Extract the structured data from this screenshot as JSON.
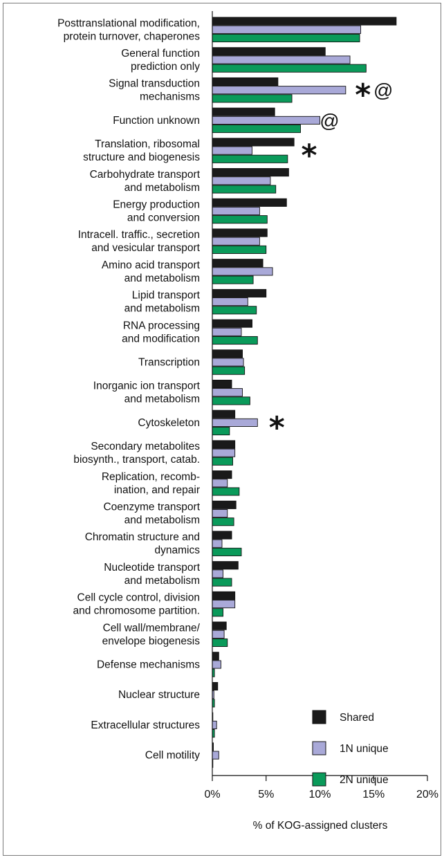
{
  "chart_data": {
    "type": "bar",
    "orientation": "horizontal",
    "xlabel": "% of KOG-assigned clusters",
    "xlim": [
      0,
      20
    ],
    "xticks": [
      "0%",
      "5%",
      "10%",
      "15%",
      "20%"
    ],
    "categories": [
      [
        "Posttranslational modification,",
        "protein turnover, chaperones"
      ],
      [
        "General function",
        "prediction only"
      ],
      [
        "Signal transduction",
        "mechanisms"
      ],
      [
        "Function unknown"
      ],
      [
        "Translation, ribosomal",
        "structure and biogenesis"
      ],
      [
        "Carbohydrate transport",
        "and metabolism"
      ],
      [
        "Energy production",
        "and conversion"
      ],
      [
        "Intracell. traffic., secretion",
        "and vesicular transport"
      ],
      [
        "Amino acid transport",
        "and metabolism"
      ],
      [
        "Lipid transport",
        "and metabolism"
      ],
      [
        "RNA processing",
        "and modification"
      ],
      [
        "Transcription"
      ],
      [
        "Inorganic ion transport",
        "and metabolism"
      ],
      [
        "Cytoskeleton"
      ],
      [
        "Secondary metabolites",
        "biosynth., transport, catab."
      ],
      [
        "Replication, recomb-",
        "ination, and repair"
      ],
      [
        "Coenzyme transport",
        "and metabolism"
      ],
      [
        "Chromatin structure and",
        "dynamics"
      ],
      [
        "Nucleotide transport",
        "and metabolism"
      ],
      [
        "Cell cycle control, division",
        "and chromosome partition."
      ],
      [
        "Cell wall/membrane/",
        "envelope biogenesis"
      ],
      [
        "Defense mechanisms"
      ],
      [
        "Nuclear structure"
      ],
      [
        "Extracellular structures"
      ],
      [
        "Cell motility"
      ]
    ],
    "series": [
      {
        "name": "Shared",
        "color": "#1a1a1a",
        "values": [
          17.1,
          10.5,
          6.1,
          5.8,
          7.6,
          7.1,
          6.9,
          5.1,
          4.7,
          5.0,
          3.7,
          2.8,
          1.8,
          2.1,
          2.1,
          1.8,
          2.2,
          1.8,
          2.4,
          2.1,
          1.3,
          0.6,
          0.5,
          0.05,
          0.1
        ]
      },
      {
        "name": "1N unique",
        "color": "#a9a9d8",
        "values": [
          13.8,
          12.8,
          12.4,
          10.0,
          3.7,
          5.4,
          4.4,
          4.4,
          5.6,
          3.3,
          2.7,
          2.9,
          2.8,
          4.2,
          2.1,
          1.4,
          1.4,
          0.9,
          1.0,
          2.1,
          1.1,
          0.8,
          0.15,
          0.4,
          0.6
        ]
      },
      {
        "name": "2N unique",
        "color": "#0a9a5a",
        "values": [
          13.7,
          14.3,
          7.4,
          8.2,
          7.0,
          5.9,
          5.1,
          5.0,
          3.8,
          4.1,
          4.2,
          3.0,
          3.5,
          1.6,
          1.9,
          2.5,
          2.0,
          2.7,
          1.8,
          1.0,
          1.4,
          0.2,
          0.2,
          0.2,
          0.05
        ]
      }
    ],
    "annotations": [
      {
        "category_index": 2,
        "text": "*",
        "x": 14.0,
        "kind": "star"
      },
      {
        "category_index": 2,
        "text": "@",
        "x": 15.9,
        "kind": "at"
      },
      {
        "category_index": 3,
        "text": "@",
        "x": 10.9,
        "kind": "at"
      },
      {
        "category_index": 4,
        "text": "*",
        "x": 9.0,
        "kind": "star"
      },
      {
        "category_index": 13,
        "text": "*",
        "x": 6.0,
        "kind": "star"
      }
    ],
    "legend_position": "bottom-right",
    "grid": false
  }
}
